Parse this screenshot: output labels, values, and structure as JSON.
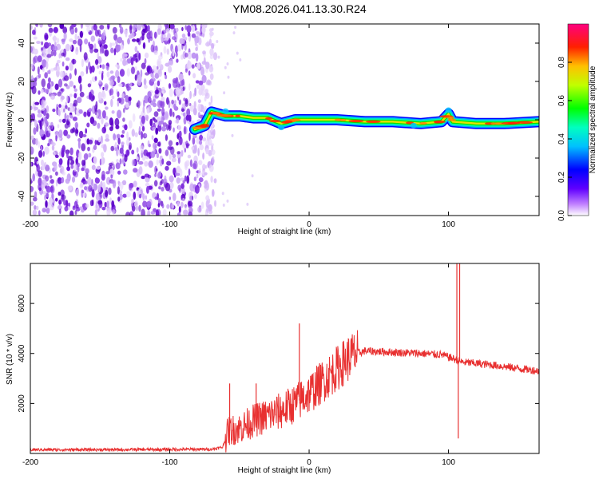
{
  "title": "YM08.2026.041.13.30.R24",
  "colors": {
    "frame": "#000000",
    "snr_line": "#e83030",
    "scatter": "#7f1fd8"
  },
  "chart_data": [
    {
      "id": "spectrogram",
      "type": "heatmap",
      "xlabel": "Height of straight line (km)",
      "ylabel": "Frequency (Hz)",
      "xlim": [
        -200,
        165
      ],
      "ylim": [
        -50,
        50
      ],
      "x_ticks": [
        -200,
        -100,
        0,
        100
      ],
      "y_ticks": [
        -40,
        -20,
        0,
        20,
        40
      ],
      "noise_region_x": [
        -200,
        -73
      ],
      "signal_start_x": -73,
      "ridge": [
        {
          "x": -82,
          "f": -5
        },
        {
          "x": -75,
          "f": -3
        },
        {
          "x": -70,
          "f": 4
        },
        {
          "x": -60,
          "f": 2
        },
        {
          "x": -50,
          "f": 2
        },
        {
          "x": -40,
          "f": 1
        },
        {
          "x": -30,
          "f": 1
        },
        {
          "x": -20,
          "f": -2
        },
        {
          "x": -10,
          "f": 0
        },
        {
          "x": 0,
          "f": 0
        },
        {
          "x": 20,
          "f": 0
        },
        {
          "x": 40,
          "f": -1
        },
        {
          "x": 60,
          "f": -1
        },
        {
          "x": 80,
          "f": -2
        },
        {
          "x": 95,
          "f": -1
        },
        {
          "x": 100,
          "f": 3
        },
        {
          "x": 103,
          "f": -1
        },
        {
          "x": 120,
          "f": -2
        },
        {
          "x": 140,
          "f": -2
        },
        {
          "x": 165,
          "f": -1
        }
      ],
      "colorbar": {
        "label": "Normalized spectral amplitude",
        "ticks": [
          "0.0",
          "0.2",
          "0.4",
          "0.6",
          "0.8"
        ],
        "range": [
          0,
          1
        ]
      }
    },
    {
      "id": "snr",
      "type": "line",
      "xlabel": "Height of straight line (km)",
      "ylabel": "SNR (10 * v/v)",
      "xlim": [
        -200,
        165
      ],
      "ylim": [
        0,
        7600
      ],
      "x_ticks": [
        -200,
        -100,
        0,
        100
      ],
      "y_ticks": [
        2000,
        4000,
        6000
      ],
      "series": [
        {
          "name": "SNR",
          "points": [
            {
              "x": -200,
              "y": 150
            },
            {
              "x": -150,
              "y": 150
            },
            {
              "x": -100,
              "y": 160
            },
            {
              "x": -70,
              "y": 170
            },
            {
              "x": -62,
              "y": 250
            },
            {
              "x": -58,
              "y": 900
            },
            {
              "x": -50,
              "y": 1000
            },
            {
              "x": -40,
              "y": 1300
            },
            {
              "x": -30,
              "y": 1500
            },
            {
              "x": -20,
              "y": 1700
            },
            {
              "x": -10,
              "y": 2000
            },
            {
              "x": 0,
              "y": 2400
            },
            {
              "x": 10,
              "y": 2900
            },
            {
              "x": 20,
              "y": 3400
            },
            {
              "x": 30,
              "y": 3900
            },
            {
              "x": 40,
              "y": 4100
            },
            {
              "x": 60,
              "y": 4050
            },
            {
              "x": 80,
              "y": 4000
            },
            {
              "x": 95,
              "y": 3950
            },
            {
              "x": 103,
              "y": 3800
            },
            {
              "x": 110,
              "y": 3650
            },
            {
              "x": 130,
              "y": 3550
            },
            {
              "x": 150,
              "y": 3400
            },
            {
              "x": 165,
              "y": 3300
            }
          ],
          "spikes": [
            {
              "x": -57,
              "y": 2800
            },
            {
              "x": -38,
              "y": 2800
            },
            {
              "x": -7,
              "y": 5200
            },
            {
              "x": 106,
              "y": 7600
            },
            {
              "x": 108,
              "y": 7600
            },
            {
              "x": 107,
              "y": 600
            }
          ]
        }
      ]
    }
  ]
}
